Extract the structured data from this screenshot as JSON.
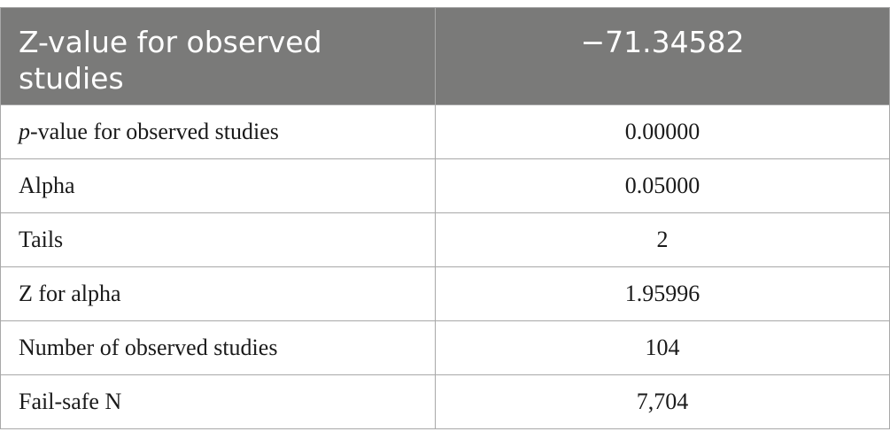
{
  "table": {
    "header": {
      "label": "Z-value for observed studies",
      "value": "−71.34582"
    },
    "rows": [
      {
        "label_italic": "p",
        "label": "-value for observed studies",
        "value": "0.00000"
      },
      {
        "label": "Alpha",
        "value": "0.05000"
      },
      {
        "label": "Tails",
        "value": "2"
      },
      {
        "label": "Z for alpha",
        "value": "1.95996"
      },
      {
        "label": "Number of observed studies",
        "value": "104"
      },
      {
        "label": "Fail-safe N",
        "value": "7,704"
      }
    ]
  }
}
